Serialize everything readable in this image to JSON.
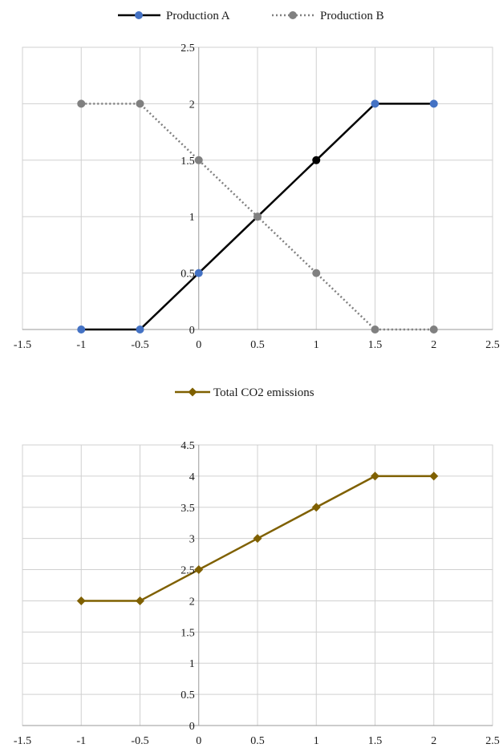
{
  "chart_data": [
    {
      "type": "line",
      "x": [
        -1,
        -0.5,
        0,
        0.5,
        1,
        1.5,
        2
      ],
      "xlim": [
        -1.5,
        2.5
      ],
      "ylim": [
        0,
        2.5
      ],
      "xticks": [
        "-1.5",
        "-1",
        "-0.5",
        "0",
        "0.5",
        "1",
        "1.5",
        "2",
        "2.5"
      ],
      "yticks": [
        "0",
        "0.5",
        "1",
        "1.5",
        "2",
        "2.5"
      ],
      "legend_position": "top",
      "grid": true,
      "series": [
        {
          "name": "Production A",
          "values": [
            0,
            0,
            0.5,
            1,
            1.5,
            2,
            2
          ],
          "line_color": "#000000",
          "line_style": "solid",
          "marker": "circle",
          "marker_colors": [
            "#4472c4",
            "#4472c4",
            "#4472c4",
            "#808080",
            "#000000",
            "#4472c4",
            "#4472c4"
          ]
        },
        {
          "name": "Production B",
          "values": [
            2,
            2,
            1.5,
            1,
            0.5,
            0,
            0
          ],
          "line_color": "#808080",
          "line_style": "dotted",
          "marker": "circle",
          "marker_colors": [
            "#808080",
            "#808080",
            "#808080",
            "#808080",
            "#808080",
            "#808080",
            "#808080"
          ]
        }
      ]
    },
    {
      "type": "line",
      "x": [
        -1,
        -0.5,
        0,
        0.5,
        1,
        1.5,
        2
      ],
      "xlim": [
        -1.5,
        2.5
      ],
      "ylim": [
        0,
        4.5
      ],
      "xticks": [
        "-1.5",
        "-1",
        "-0.5",
        "0",
        "0.5",
        "1",
        "1.5",
        "2",
        "2.5"
      ],
      "yticks": [
        "0",
        "0.5",
        "1",
        "1.5",
        "2",
        "2.5",
        "3",
        "3.5",
        "4",
        "4.5"
      ],
      "legend_position": "top",
      "grid": true,
      "series": [
        {
          "name": "Total CO2 emissions",
          "values": [
            2,
            2,
            2.5,
            3,
            3.5,
            4,
            4
          ],
          "line_color": "#7f6000",
          "line_style": "solid",
          "marker": "diamond",
          "marker_colors": [
            "#7f6000",
            "#7f6000",
            "#7f6000",
            "#7f6000",
            "#7f6000",
            "#7f6000",
            "#7f6000"
          ]
        }
      ]
    }
  ]
}
